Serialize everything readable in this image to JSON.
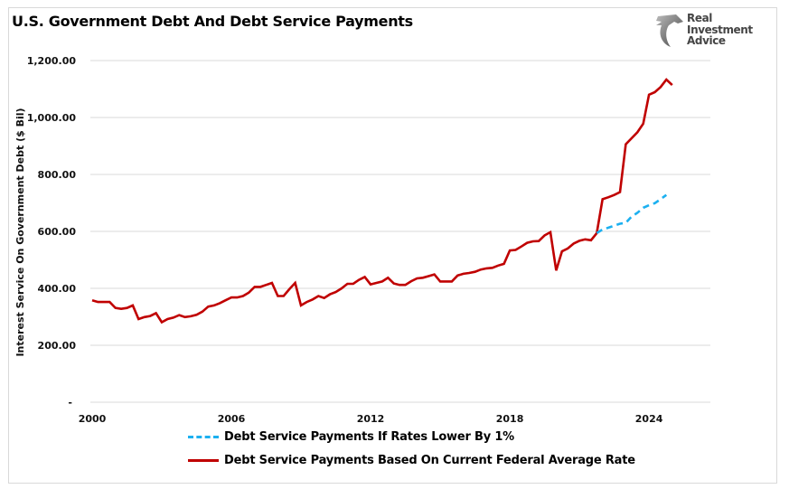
{
  "chart_data": {
    "type": "line",
    "title": "U.S. Government Debt And Debt Service Payments",
    "ylabel": "Interest Service On Government Debt ($ Bil)",
    "xlabel": "",
    "ylim": [
      0,
      1200
    ],
    "xlim": [
      "2000Q1",
      "2025Q4"
    ],
    "yticks": [
      {
        "value": 0,
        "label": "-"
      },
      {
        "value": 200,
        "label": "200.00"
      },
      {
        "value": 400,
        "label": "400.00"
      },
      {
        "value": 600,
        "label": "600.00"
      },
      {
        "value": 800,
        "label": "800.00"
      },
      {
        "value": 1000,
        "label": "1,000.00"
      },
      {
        "value": 1200,
        "label": "1,200.00"
      }
    ],
    "xticks": [
      {
        "value": 2000,
        "label": "2000"
      },
      {
        "value": 2006,
        "label": "2006"
      },
      {
        "value": 2012,
        "label": "2012"
      },
      {
        "value": 2018,
        "label": "2018"
      },
      {
        "value": 2024,
        "label": "2024"
      }
    ],
    "grid": true,
    "legend_position": "bottom",
    "series": [
      {
        "name": "Debt Service Payments If Rates Lower By 1%",
        "color": "#1cb0f0",
        "style": "dashed",
        "x": [
          "2021Q4",
          "2022Q1",
          "2022Q2",
          "2022Q3",
          "2022Q4",
          "2023Q1",
          "2023Q2",
          "2023Q3",
          "2023Q4",
          "2024Q1",
          "2024Q2",
          "2024Q3",
          "2024Q4"
        ],
        "values": [
          594,
          607,
          613,
          620,
          627,
          630,
          652,
          665,
          683,
          692,
          699,
          713,
          728
        ]
      },
      {
        "name": "Debt Service Payments Based On Current Federal Average Rate",
        "color": "#c00000",
        "style": "solid",
        "start": "2000Q1",
        "values": [
          358,
          352,
          352,
          352,
          331,
          328,
          331,
          340,
          292,
          299,
          303,
          313,
          281,
          292,
          297,
          306,
          299,
          302,
          307,
          318,
          336,
          340,
          348,
          358,
          368,
          368,
          373,
          385,
          405,
          405,
          412,
          419,
          373,
          373,
          397,
          419,
          340,
          352,
          361,
          373,
          366,
          379,
          387,
          400,
          416,
          416,
          430,
          440,
          414,
          419,
          424,
          437,
          417,
          412,
          412,
          425,
          435,
          437,
          443,
          449,
          424,
          424,
          424,
          445,
          451,
          454,
          458,
          466,
          470,
          472,
          480,
          486,
          533,
          535,
          547,
          560,
          565,
          566,
          586,
          597,
          463,
          530,
          540,
          557,
          567,
          572,
          569,
          594,
          713,
          720,
          728,
          738,
          906,
          927,
          948,
          978,
          1080,
          1089,
          1107,
          1133,
          1114
        ]
      }
    ]
  },
  "logo": {
    "text": [
      "Real",
      "Investment",
      "Advice"
    ],
    "icon": "eagle-head-icon"
  }
}
